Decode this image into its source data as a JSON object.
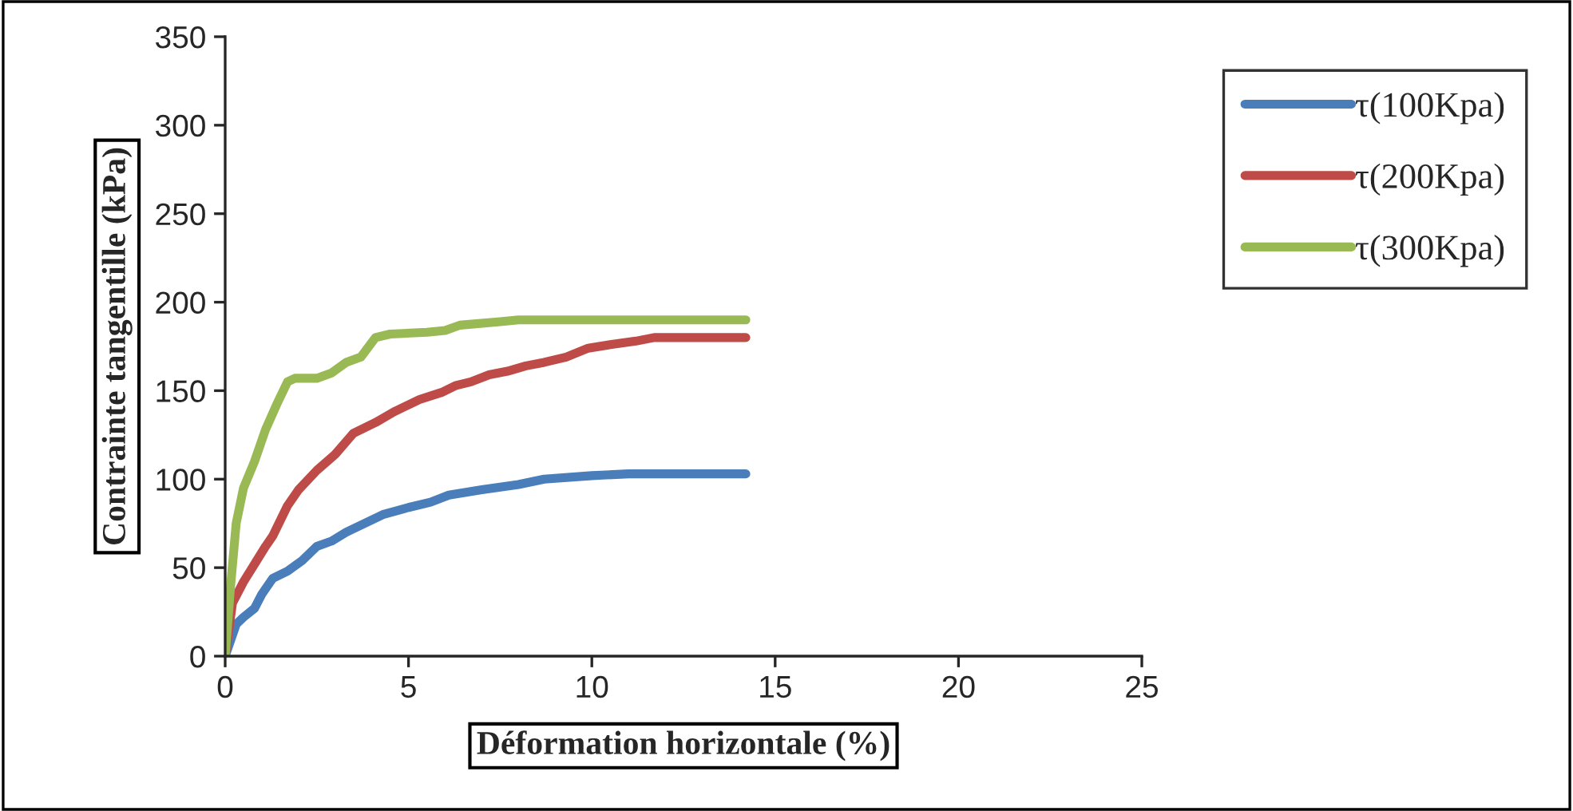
{
  "chart_data": {
    "type": "line",
    "xlabel": "Déformation horizontale (%)",
    "ylabel": "Contrainte tangentille (kPa)",
    "xlim": [
      0,
      25
    ],
    "xticks": [
      0,
      5,
      10,
      15,
      20,
      25
    ],
    "ylim": [
      0,
      350
    ],
    "yticks": [
      0,
      50,
      100,
      150,
      200,
      250,
      300,
      350
    ],
    "grid": false,
    "legend": "top right",
    "marker": "none",
    "line_style": "solid",
    "series": [
      {
        "name": "τ(100Kpa)",
        "color": "#4a7ebb",
        "x": [
          0,
          0.3,
          0.5,
          0.8,
          1.0,
          1.3,
          1.7,
          2.1,
          2.5,
          2.9,
          3.3,
          3.8,
          4.3,
          5,
          5.6,
          6.1,
          7,
          8,
          8.7,
          10,
          11,
          14.2
        ],
        "values": [
          0,
          18,
          22,
          27,
          35,
          44,
          48,
          54,
          62,
          65,
          70,
          75,
          80,
          84,
          87,
          91,
          94,
          97,
          100,
          102,
          103,
          103
        ]
      },
      {
        "name": "τ(200Kpa)",
        "color": "#be4b48",
        "x": [
          0,
          0.2,
          0.5,
          0.8,
          1.1,
          1.3,
          1.7,
          2.0,
          2.5,
          3.0,
          3.5,
          4.1,
          4.6,
          5.3,
          5.9,
          6.3,
          6.7,
          7.2,
          7.7,
          8.2,
          8.7,
          9.3,
          9.9,
          10.5,
          11.2,
          11.7,
          14.2
        ],
        "values": [
          0,
          30,
          42,
          52,
          62,
          68,
          85,
          94,
          105,
          114,
          126,
          132,
          138,
          145,
          149,
          153,
          155,
          159,
          161,
          164,
          166,
          169,
          174,
          176,
          178,
          180,
          180
        ]
      },
      {
        "name": "τ(300Kpa)",
        "color": "#98b954",
        "x": [
          0,
          0.15,
          0.3,
          0.5,
          0.8,
          1.1,
          1.4,
          1.7,
          1.9,
          2.5,
          2.9,
          3.3,
          3.7,
          4.1,
          4.5,
          5.5,
          6,
          6.4,
          7.5,
          8,
          14.2
        ],
        "values": [
          0,
          40,
          75,
          95,
          110,
          128,
          142,
          155,
          157,
          157,
          160,
          166,
          169,
          180,
          182,
          183,
          184,
          187,
          189,
          190,
          190
        ]
      }
    ]
  }
}
